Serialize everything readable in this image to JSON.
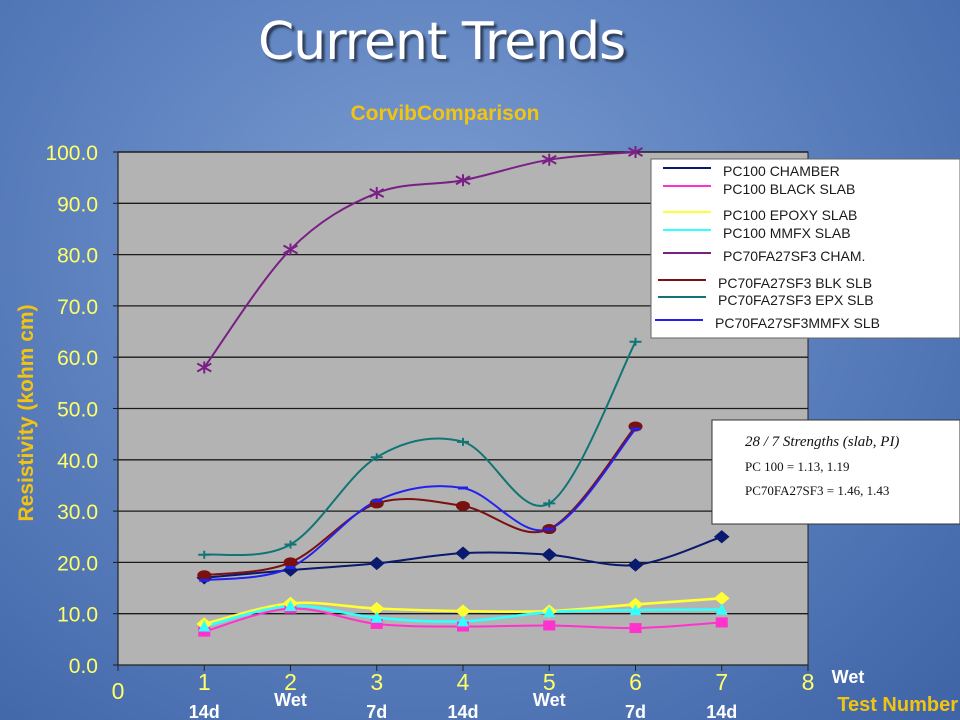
{
  "slide": {
    "title": "Current Trends"
  },
  "chart_data": {
    "type": "line",
    "title": "CorvibComparison",
    "ylabel": "Resistivity (kohm cm)",
    "xlabel": "Test Number",
    "ylim": [
      0,
      100
    ],
    "yticks": [
      "0.0",
      "10.0",
      "20.0",
      "30.0",
      "40.0",
      "50.0",
      "60.0",
      "70.0",
      "80.0",
      "90.0",
      "100.0"
    ],
    "xlim": [
      0,
      8
    ],
    "xticks": [
      "0",
      "1",
      "2",
      "3",
      "4",
      "5",
      "6",
      "7",
      "8"
    ],
    "x_sublabels": [
      {
        "x": 1,
        "text": "14d"
      },
      {
        "x": 2,
        "text": "Wet"
      },
      {
        "x": 3,
        "text": "7d"
      },
      {
        "x": 4,
        "text": "14d"
      },
      {
        "x": 5,
        "text": "Wet"
      },
      {
        "x": 6,
        "text": "7d"
      },
      {
        "x": 7,
        "text": "14d"
      },
      {
        "x": 8,
        "text": "Wet"
      }
    ],
    "grid": true,
    "legend_position": "top-right",
    "series": [
      {
        "name": "PC100 CHAMBER",
        "color": "#0a1a6e",
        "marker": "diamond",
        "x": [
          1,
          2,
          3,
          4,
          5,
          6,
          7
        ],
        "values": [
          17,
          18.5,
          19.8,
          21.8,
          21.5,
          19.5,
          25
        ]
      },
      {
        "name": "PC100 BLACK SLAB",
        "color": "#ff33cc",
        "marker": "square",
        "x": [
          1,
          2,
          3,
          4,
          5,
          6,
          7
        ],
        "values": [
          6.5,
          11,
          8,
          7.5,
          7.7,
          7.2,
          8.3
        ]
      },
      {
        "name": "PC100 EPOXY SLAB",
        "color": "#ffff33",
        "marker": "diamond",
        "x": [
          1,
          2,
          3,
          4,
          5,
          6,
          7
        ],
        "values": [
          8,
          12,
          11,
          10.5,
          10.5,
          11.8,
          13
        ]
      },
      {
        "name": "PC100 MMFX SLAB",
        "color": "#33ffff",
        "marker": "triangle",
        "x": [
          1,
          2,
          3,
          4,
          5,
          6,
          7
        ],
        "values": [
          7.5,
          11.5,
          9.2,
          8.5,
          10.3,
          10.7,
          10.8
        ]
      },
      {
        "name": "PC70FA27SF3 CHAM.",
        "color": "#7a1f85",
        "marker": "star",
        "x": [
          1,
          2,
          3,
          4,
          5,
          6
        ],
        "values": [
          58,
          81,
          92,
          94.5,
          98.5,
          100
        ]
      },
      {
        "name": "PC70FA27SF3 BLK SLB",
        "color": "#7a1010",
        "marker": "circle",
        "x": [
          1,
          2,
          3,
          4,
          5,
          6
        ],
        "values": [
          17.5,
          20,
          31.5,
          31,
          26.5,
          46.5
        ]
      },
      {
        "name": "PC70FA27SF3 EPX SLB",
        "color": "#107575",
        "marker": "plus",
        "x": [
          1,
          2,
          3,
          4,
          5,
          6
        ],
        "values": [
          21.5,
          23.5,
          40.5,
          43.5,
          31.5,
          63
        ]
      },
      {
        "name": "PC70FA27SF3MMFX SLB",
        "color": "#2222ee",
        "marker": "dash",
        "x": [
          1,
          2,
          3,
          4,
          5,
          6
        ],
        "values": [
          16.5,
          19,
          32,
          34.5,
          26.5,
          46
        ]
      }
    ],
    "annotation": {
      "title": "28 / 7 Strengths (slab, PI)",
      "lines": [
        "PC 100 = 1.13, 1.19",
        "PC70FA27SF3  = 1.46, 1.43"
      ]
    }
  }
}
